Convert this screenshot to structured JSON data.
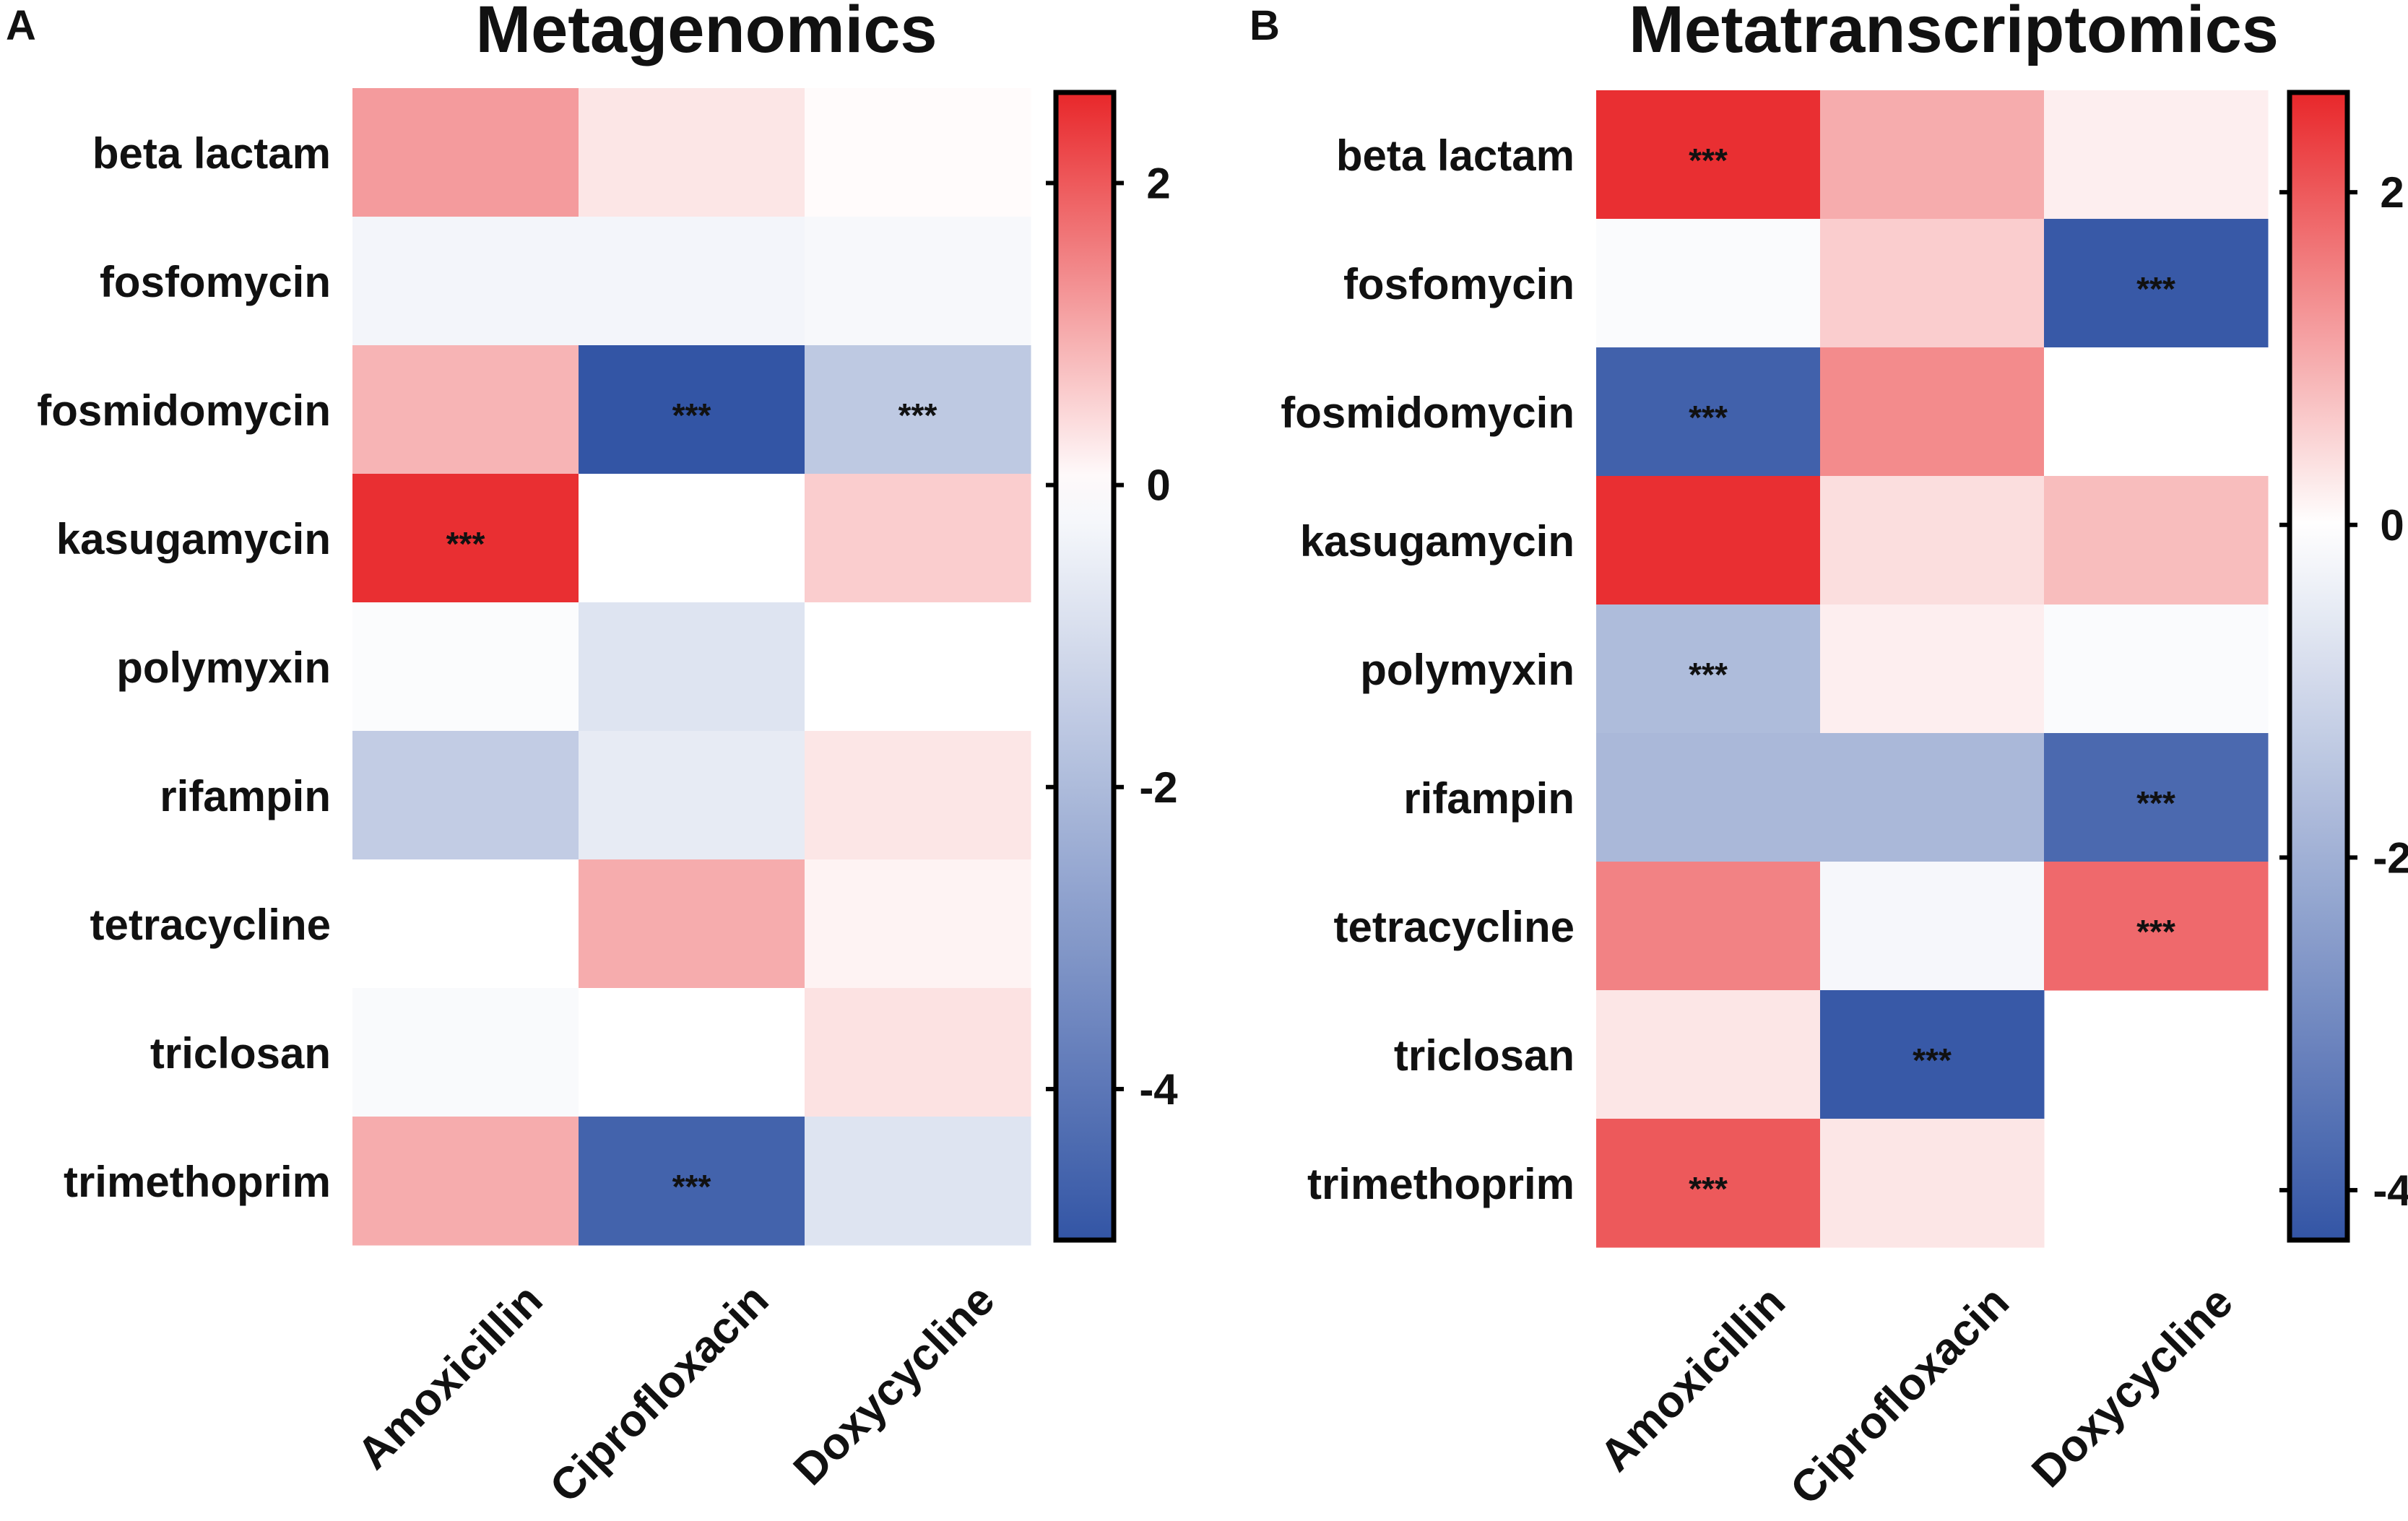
{
  "figure": {
    "panels": [
      "A",
      "B"
    ]
  },
  "chart_data": [
    {
      "panel": "A",
      "type": "heatmap",
      "title": "Metagenomics",
      "rows": [
        "beta lactam",
        "fosfomycin",
        "fosmidomycin",
        "kasugamycin",
        "polymyxin",
        "rifampin",
        "tetracycline",
        "triclosan",
        "trimethoprim"
      ],
      "columns": [
        "Amoxicillin",
        "Ciprofloxacin",
        "Doxycycline"
      ],
      "values": [
        [
          1.2,
          0.3,
          0.05
        ],
        [
          -0.3,
          -0.3,
          -0.2
        ],
        [
          0.9,
          -5.0,
          -1.6
        ],
        [
          2.5,
          0.0,
          0.6
        ],
        [
          -0.1,
          -0.8,
          0.0
        ],
        [
          -1.5,
          -0.6,
          0.3
        ],
        [
          0.0,
          1.0,
          0.15
        ],
        [
          -0.15,
          0.0,
          0.35
        ],
        [
          1.0,
          -4.6,
          -0.8
        ]
      ],
      "significance": [
        [
          "",
          "",
          ""
        ],
        [
          "",
          "",
          ""
        ],
        [
          "",
          "***",
          "***"
        ],
        [
          "***",
          "",
          ""
        ],
        [
          "",
          "",
          ""
        ],
        [
          "",
          "",
          ""
        ],
        [
          "",
          "",
          ""
        ],
        [
          "",
          "",
          ""
        ],
        [
          "",
          "***",
          ""
        ]
      ],
      "colorbar": {
        "min": -5,
        "max": 2.6,
        "ticks": [
          2,
          0,
          -2,
          -4
        ],
        "tick_labels": [
          "2",
          "0",
          "-2",
          "-4"
        ]
      },
      "colors": {
        "low": "#3355a5",
        "mid": "#ffffff",
        "high": "#e8272a"
      }
    },
    {
      "panel": "B",
      "type": "heatmap",
      "title": "Metatranscriptomics",
      "rows": [
        "beta lactam",
        "fosfomycin",
        "fosmidomycin",
        "kasugamycin",
        "polymyxin",
        "rifampin",
        "tetracycline",
        "triclosan",
        "trimethoprim"
      ],
      "columns": [
        "Amoxicillin",
        "Ciprofloxacin",
        "Doxycycline"
      ],
      "values": [
        [
          2.5,
          1.0,
          0.2
        ],
        [
          -0.1,
          0.6,
          -4.2
        ],
        [
          -4.0,
          1.4,
          0.0
        ],
        [
          2.5,
          0.4,
          0.8
        ],
        [
          -1.7,
          0.2,
          -0.1
        ],
        [
          -1.8,
          -1.8,
          -3.8
        ],
        [
          1.5,
          -0.2,
          1.8
        ],
        [
          0.3,
          -4.2,
          null
        ],
        [
          2.0,
          0.3,
          null
        ]
      ],
      "significance": [
        [
          "***",
          "",
          ""
        ],
        [
          "",
          "",
          "***"
        ],
        [
          "***",
          "",
          ""
        ],
        [
          "",
          "",
          ""
        ],
        [
          "***",
          "",
          ""
        ],
        [
          "",
          "",
          "***"
        ],
        [
          "",
          "",
          "***"
        ],
        [
          "",
          "***",
          ""
        ],
        [
          "***",
          "",
          ""
        ]
      ],
      "colorbar": {
        "min": -4.3,
        "max": 2.6,
        "ticks": [
          2,
          0,
          -2,
          -4
        ],
        "tick_labels": [
          "2",
          "0",
          "-2",
          "-4"
        ]
      },
      "colors": {
        "low": "#3355a5",
        "mid": "#ffffff",
        "high": "#e8272a"
      }
    }
  ]
}
